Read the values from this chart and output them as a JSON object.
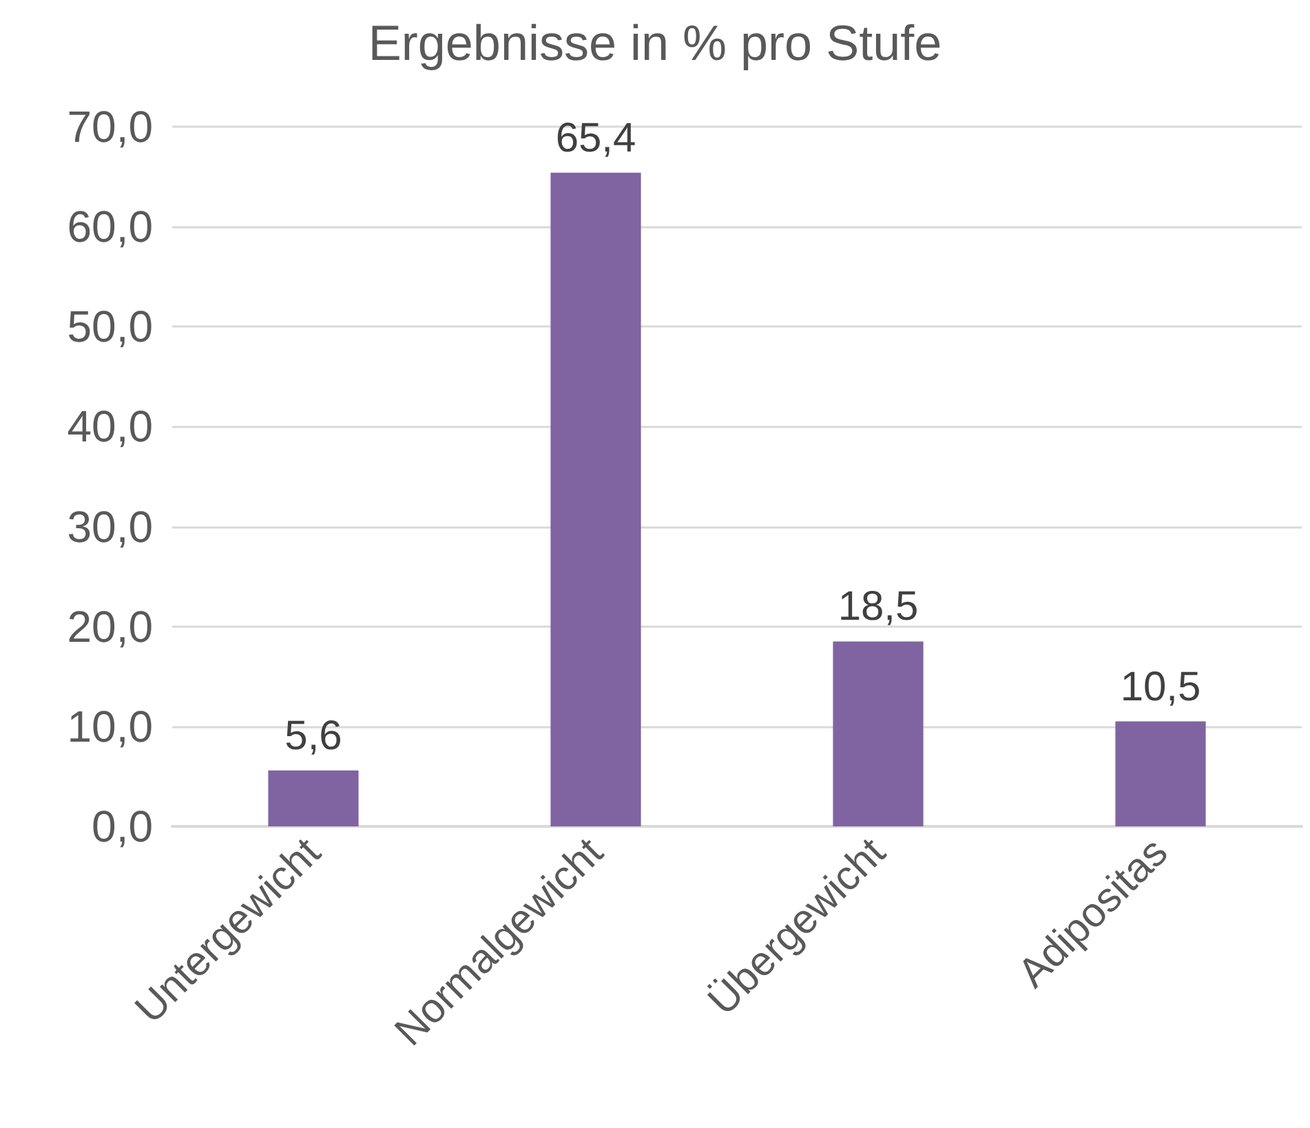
{
  "chart_data": {
    "type": "bar",
    "title": "Ergebnisse in % pro Stufe",
    "categories": [
      "Untergewicht",
      "Normalgewicht",
      "Übergewicht",
      "Adipositas"
    ],
    "values": [
      5.6,
      65.4,
      18.5,
      10.5
    ],
    "color": "#8064a2",
    "value_labels": [
      "5,6",
      "65,4",
      "18,5",
      "10,5"
    ],
    "ylim": [
      0,
      70
    ],
    "yticks": [
      {
        "value": 0,
        "label": "0,0"
      },
      {
        "value": 10,
        "label": "10,0"
      },
      {
        "value": 20,
        "label": "20,0"
      },
      {
        "value": 30,
        "label": "30,0"
      },
      {
        "value": 40,
        "label": "40,0"
      },
      {
        "value": 50,
        "label": "50,0"
      },
      {
        "value": 60,
        "label": "60,0"
      },
      {
        "value": 70,
        "label": "70,0"
      }
    ],
    "grid": "y"
  }
}
